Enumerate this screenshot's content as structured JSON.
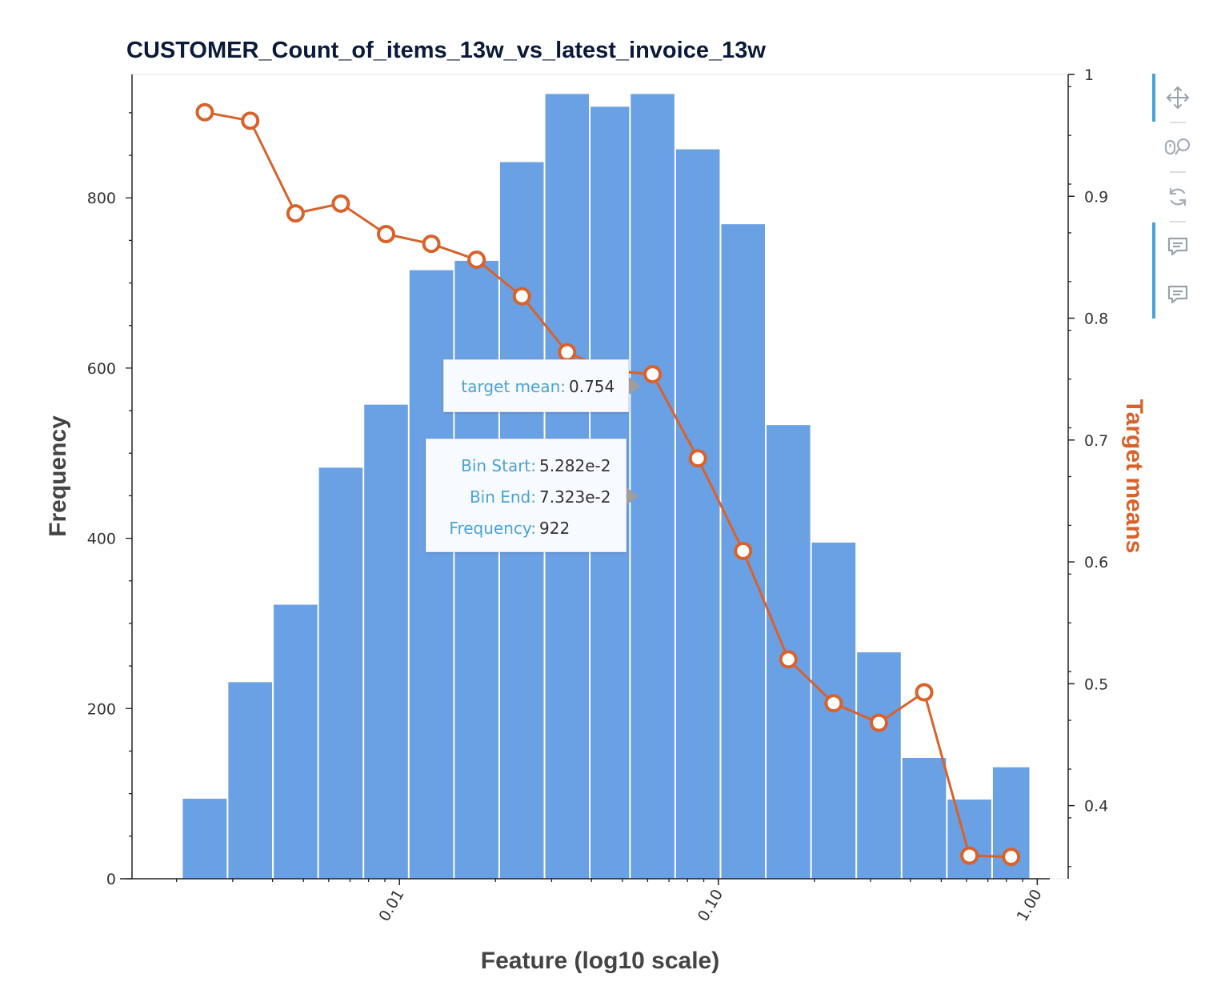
{
  "chart_data": {
    "type": "bar",
    "title": "CUSTOMER_Count_of_items_13w_vs_latest_invoice_13w",
    "xlabel": "Feature (log10 scale)",
    "ylabel": "Frequency",
    "y2label": "Target means",
    "xscale": "log",
    "xlim": [
      0.00145,
      1.25
    ],
    "ylim": [
      0,
      945
    ],
    "y2lim": [
      0.34,
      1.0
    ],
    "x_ticks": [
      {
        "value": 0.01,
        "label": "0.01"
      },
      {
        "value": 0.1,
        "label": "0.10"
      },
      {
        "value": 1.0,
        "label": "1.00"
      }
    ],
    "y_ticks": [
      {
        "value": 0,
        "label": "0"
      },
      {
        "value": 200,
        "label": "200"
      },
      {
        "value": 400,
        "label": "400"
      },
      {
        "value": 600,
        "label": "600"
      },
      {
        "value": 800,
        "label": "800"
      }
    ],
    "y2_ticks": [
      {
        "value": 0.4,
        "label": "0.4"
      },
      {
        "value": 0.5,
        "label": "0.5"
      },
      {
        "value": 0.6,
        "label": "0.6"
      },
      {
        "value": 0.7,
        "label": "0.7"
      },
      {
        "value": 0.8,
        "label": "0.8"
      },
      {
        "value": 0.9,
        "label": "0.9"
      },
      {
        "value": 1.0,
        "label": "1"
      }
    ],
    "bins": [
      {
        "start": 0.00208,
        "end": 0.00289,
        "frequency": 94
      },
      {
        "start": 0.00289,
        "end": 0.00401,
        "frequency": 231
      },
      {
        "start": 0.00401,
        "end": 0.00556,
        "frequency": 322
      },
      {
        "start": 0.00556,
        "end": 0.00771,
        "frequency": 483
      },
      {
        "start": 0.00771,
        "end": 0.01069,
        "frequency": 557
      },
      {
        "start": 0.01069,
        "end": 0.01482,
        "frequency": 715
      },
      {
        "start": 0.01482,
        "end": 0.02055,
        "frequency": 726
      },
      {
        "start": 0.02055,
        "end": 0.0285,
        "frequency": 842
      },
      {
        "start": 0.0285,
        "end": 0.03951,
        "frequency": 922
      },
      {
        "start": 0.03951,
        "end": 0.05282,
        "frequency": 907
      },
      {
        "start": 0.05282,
        "end": 0.07323,
        "frequency": 922
      },
      {
        "start": 0.07323,
        "end": 0.10155,
        "frequency": 857
      },
      {
        "start": 0.10155,
        "end": 0.1408,
        "frequency": 769
      },
      {
        "start": 0.1408,
        "end": 0.19523,
        "frequency": 533
      },
      {
        "start": 0.19523,
        "end": 0.2707,
        "frequency": 395
      },
      {
        "start": 0.2707,
        "end": 0.37535,
        "frequency": 266
      },
      {
        "start": 0.37535,
        "end": 0.52045,
        "frequency": 142
      },
      {
        "start": 0.52045,
        "end": 0.72165,
        "frequency": 93
      },
      {
        "start": 0.72165,
        "end": 0.95,
        "frequency": 131
      }
    ],
    "target_means": [
      0.969,
      0.962,
      0.886,
      0.894,
      0.869,
      0.861,
      0.848,
      0.818,
      0.772,
      0.757,
      0.754,
      0.685,
      0.609,
      0.52,
      0.484,
      0.468,
      0.493,
      0.359,
      0.358
    ],
    "bar_color": "#6aa0e4",
    "line_color": "#d9622b"
  },
  "tooltips": {
    "line": {
      "target_mean_key": "target mean:",
      "target_mean_value": "0.754"
    },
    "bar": {
      "bin_start_key": "Bin Start:",
      "bin_start_value": "5.282e-2",
      "bin_end_key": "Bin End:",
      "bin_end_value": "7.323e-2",
      "frequency_key": "Frequency:",
      "frequency_value": "922"
    }
  },
  "toolbar": {
    "tools": [
      "pan-icon",
      "wheel-zoom-icon",
      "reset-icon",
      "hover-icon",
      "hover-icon-2"
    ]
  }
}
